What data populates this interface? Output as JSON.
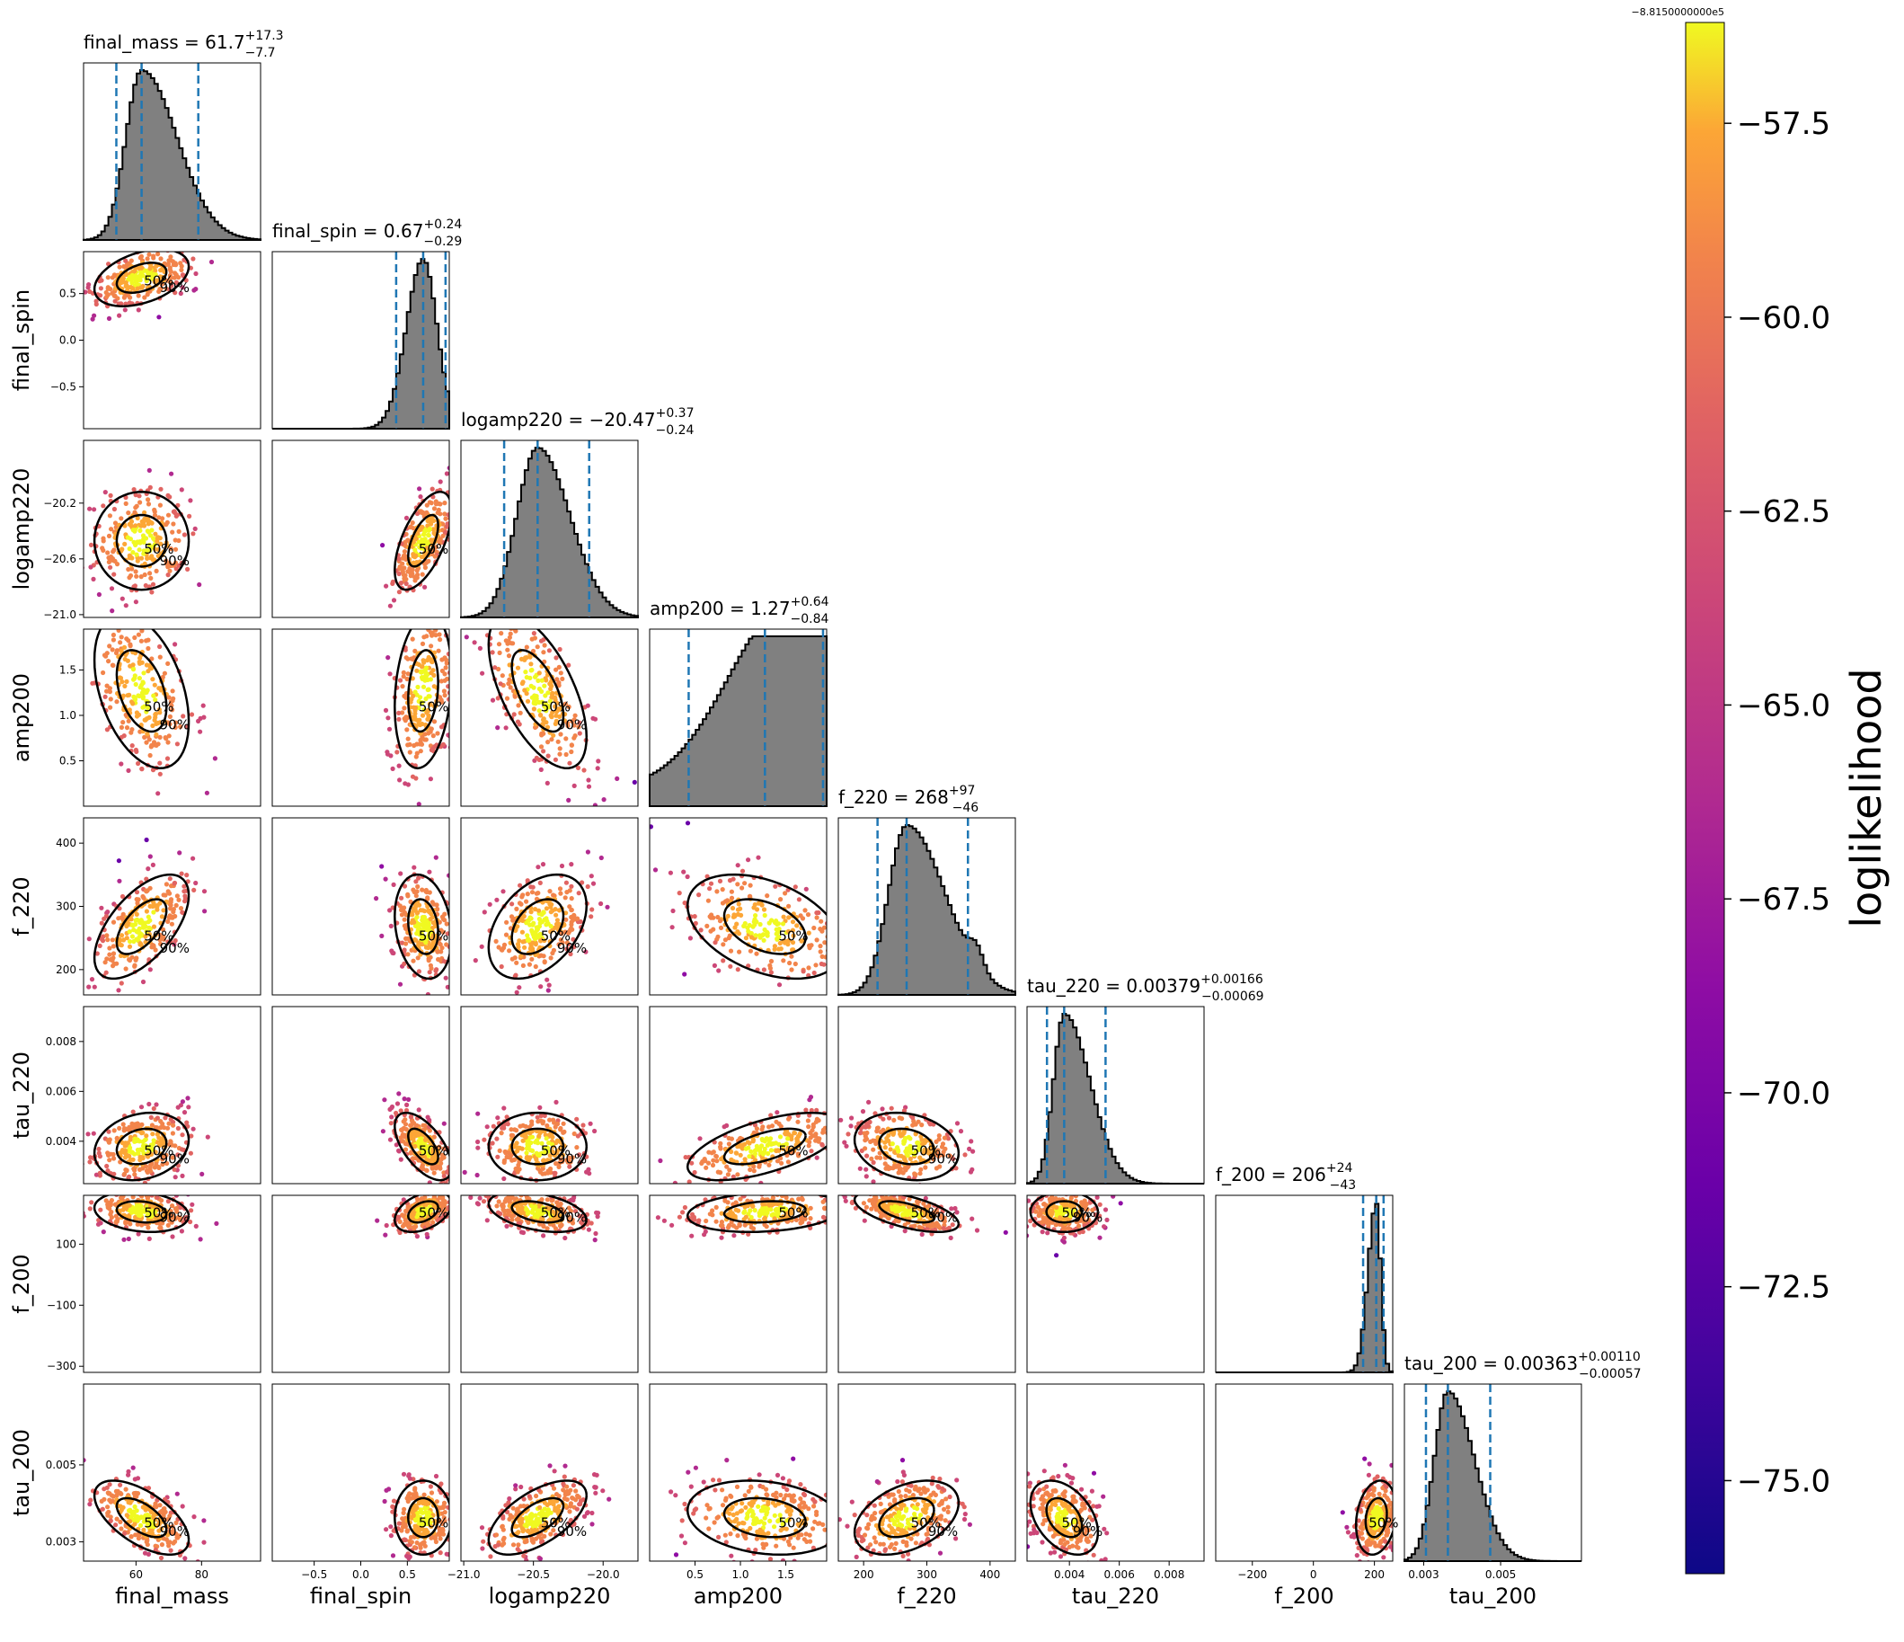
{
  "chart_data": {
    "type": "corner",
    "parameters": [
      "final_mass",
      "final_spin",
      "logamp220",
      "amp200",
      "f_220",
      "tau_220",
      "f_200",
      "tau_200"
    ],
    "titles": [
      {
        "name": "final_mass",
        "median": "61.7",
        "plus": "+17.3",
        "minus": "−7.7"
      },
      {
        "name": "final_spin",
        "median": "0.67",
        "plus": "+0.24",
        "minus": "−0.29"
      },
      {
        "name": "logamp220",
        "median": "−20.47",
        "plus": "+0.37",
        "minus": "−0.24"
      },
      {
        "name": "amp200",
        "median": "1.27",
        "plus": "+0.64",
        "minus": "−0.84"
      },
      {
        "name": "f_220",
        "median": "268",
        "plus": "+97",
        "minus": "−46"
      },
      {
        "name": "tau_220",
        "median": "0.00379",
        "plus": "+0.00166",
        "minus": "−0.00069"
      },
      {
        "name": "f_200",
        "median": "206",
        "plus": "+24",
        "minus": "−43"
      },
      {
        "name": "tau_200",
        "median": "0.00363",
        "plus": "+0.00110",
        "minus": "−0.00057"
      }
    ],
    "ranges": [
      [
        44,
        98
      ],
      [
        -0.95,
        0.95
      ],
      [
        -21.02,
        -19.75
      ],
      [
        0,
        1.95
      ],
      [
        160,
        440
      ],
      [
        0.0023,
        0.0094
      ],
      [
        -320,
        260
      ],
      [
        0.0025,
        0.0071
      ]
    ],
    "ticks": [
      {
        "values": [
          60,
          80
        ],
        "labels": [
          "60",
          "80"
        ]
      },
      {
        "values": [
          -0.5,
          0.0,
          0.5
        ],
        "labels": [
          "−0.5",
          "0.0",
          "0.5"
        ]
      },
      {
        "values": [
          -21.0,
          -20.6,
          -20.2
        ],
        "labels": [
          "−21.0",
          "−20.6",
          "−20.2"
        ]
      },
      {
        "values": [
          0.5,
          1.0,
          1.5
        ],
        "labels": [
          "0.5",
          "1.0",
          "1.5"
        ]
      },
      {
        "values": [
          200,
          300,
          400
        ],
        "labels": [
          "200",
          "300",
          "400"
        ]
      },
      {
        "values": [
          0.004,
          0.006,
          0.008
        ],
        "labels": [
          "0.004",
          "0.006",
          "0.008"
        ]
      },
      {
        "values": [
          -300,
          -100,
          100
        ],
        "labels": [
          "−300",
          "−100",
          "100"
        ]
      },
      {
        "values": [
          0.003,
          0.005
        ],
        "labels": [
          "0.003",
          "0.005"
        ]
      }
    ],
    "xticks": [
      {
        "values": [
          60,
          80
        ],
        "labels": [
          "60",
          "80"
        ]
      },
      {
        "values": [
          -0.5,
          0.0,
          0.5
        ],
        "labels": [
          "−0.5",
          "0.0",
          "0.5"
        ]
      },
      {
        "values": [
          -21.0,
          -20.5,
          -20.0
        ],
        "labels": [
          "−21.0",
          "−20.5",
          "−20.0"
        ]
      },
      {
        "values": [
          0.5,
          1.0,
          1.5
        ],
        "labels": [
          "0.5",
          "1.0",
          "1.5"
        ]
      },
      {
        "values": [
          200,
          300,
          400
        ],
        "labels": [
          "200",
          "300",
          "400"
        ]
      },
      {
        "values": [
          0.004,
          0.006,
          0.008
        ],
        "labels": [
          "0.004",
          "0.006",
          "0.008"
        ]
      },
      {
        "values": [
          -200,
          0,
          200
        ],
        "labels": [
          "−200",
          "0",
          "200"
        ]
      },
      {
        "values": [
          0.003,
          0.005
        ],
        "labels": [
          "0.003",
          "0.005"
        ]
      }
    ],
    "quantile_lines": [
      [
        54.0,
        61.7,
        79.0
      ],
      [
        0.38,
        0.67,
        0.91
      ],
      [
        -20.71,
        -20.47,
        -20.1
      ],
      [
        0.43,
        1.27,
        1.91
      ],
      [
        222,
        268,
        365
      ],
      [
        0.0031,
        0.00379,
        0.00545
      ],
      [
        163,
        206,
        230
      ],
      [
        0.00306,
        0.00363,
        0.00473
      ]
    ],
    "contour_labels": [
      "50%",
      "90%"
    ],
    "colorbar": {
      "label": "loglikelihood",
      "offset_text": "−8.8150000000e5",
      "range": [
        -76.2,
        -56.2
      ],
      "ticks": [
        -57.5,
        -60.0,
        -62.5,
        -65.0,
        -67.5,
        -70.0,
        -72.5,
        -75.0
      ],
      "tick_labels": [
        "−57.5",
        "−60.0",
        "−62.5",
        "−65.0",
        "−67.5",
        "−70.0",
        "−72.5",
        "−75.0"
      ],
      "colormap": "plasma"
    },
    "hist_color": "#808080",
    "quantile_color": "#1f77b4",
    "contour_color": "#000000",
    "grid": false
  }
}
